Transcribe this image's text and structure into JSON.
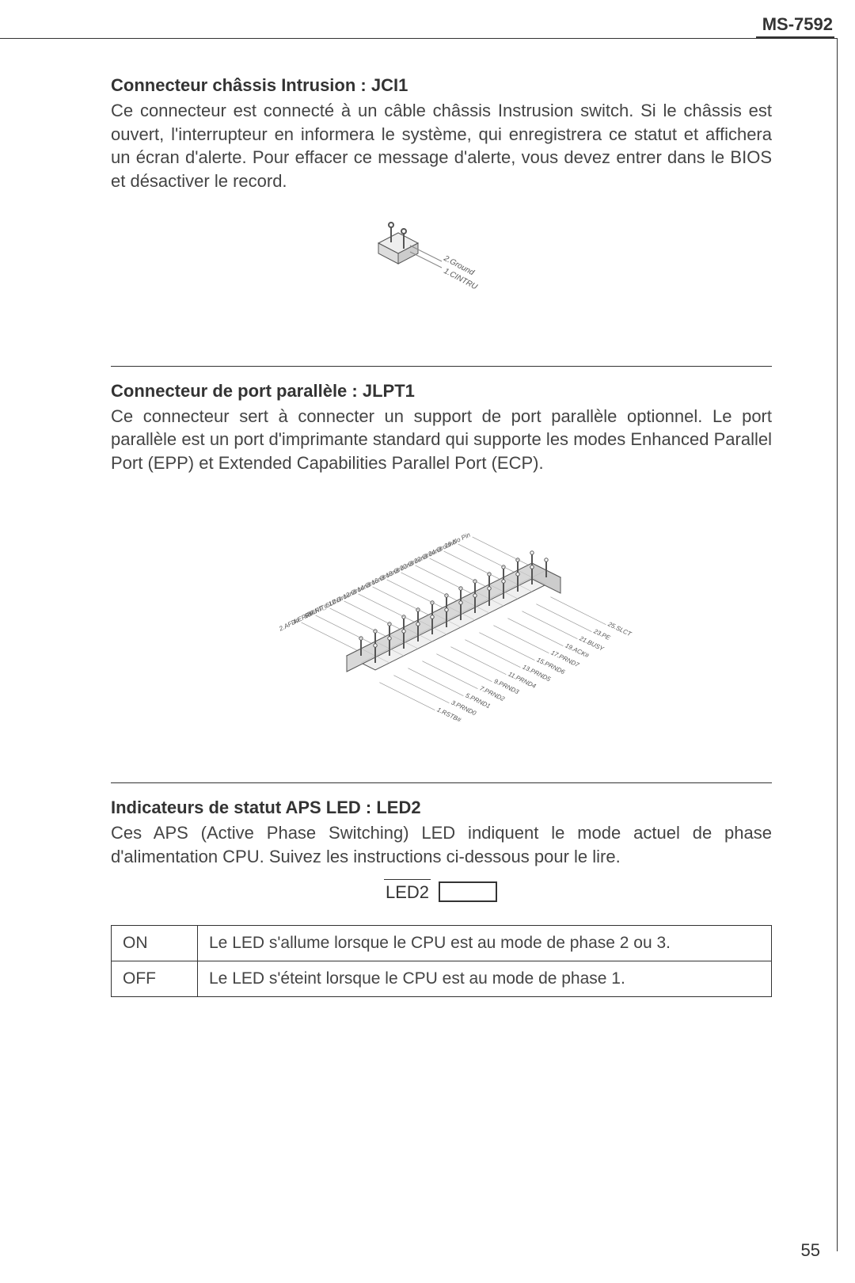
{
  "header": {
    "model": "MS-7592"
  },
  "page_number": "55",
  "colors": {
    "text": "#333333",
    "rule": "#333333",
    "body": "#444444",
    "bg": "#ffffff"
  },
  "sections": {
    "jci": {
      "title": "Connecteur châssis Intrusion : JCI1",
      "body": "Ce connecteur est connecté à un câble châssis Instrusion switch. Si le châssis est ouvert, l'interrupteur en informera le système, qui enregistrera ce statut et affichera un écran d'alerte. Pour effacer ce message d'alerte, vous devez entrer dans le BIOS et désactiver le record.",
      "diagram": {
        "pins": [
          {
            "n": 2,
            "label": "2.Ground"
          },
          {
            "n": 1,
            "label": "1.CINTRU"
          }
        ]
      }
    },
    "jlpt": {
      "title": "Connecteur de port parallèle : JLPT1",
      "body": "Ce connecteur sert à connecter un support de port parallèle optionnel. Le port parallèle est un port d'imprimante standard qui supporte les modes Enhanced Parallel Port (EPP) et Extended Capabilities Parallel Port (ECP).",
      "diagram": {
        "left_pins": [
          "26.No Pin",
          "24.Ground",
          "22.Ground",
          "20.Ground",
          "18.Ground",
          "16.Ground",
          "14.Ground",
          "12.Ground",
          "10.Ground",
          "8.LPT_SLIN#",
          "6.PINIT#",
          "4.ERR#",
          "2.AFD#"
        ],
        "right_pins": [
          "25.SLCT",
          "23.PE",
          "21.BUSY",
          "19.ACK#",
          "17.PRND7",
          "15.PRND6",
          "13.PRND5",
          "11.PRND4",
          "9.PRND3",
          "7.PRND2",
          "5.PRND1",
          "3.PRND0",
          "1.RSTB#"
        ]
      }
    },
    "led": {
      "title": "Indicateurs de statut APS LED : LED2",
      "body": "Ces APS (Active Phase Switching) LED indiquent le mode actuel de phase d'alimentation CPU. Suivez les instructions ci-dessous pour le lire.",
      "label": "LED2",
      "table": [
        {
          "state": "ON",
          "desc": "Le LED s'allume lorsque le CPU est au mode de phase 2 ou 3."
        },
        {
          "state": "OFF",
          "desc": "Le LED s'éteint lorsque le CPU est au mode de phase 1."
        }
      ]
    }
  }
}
